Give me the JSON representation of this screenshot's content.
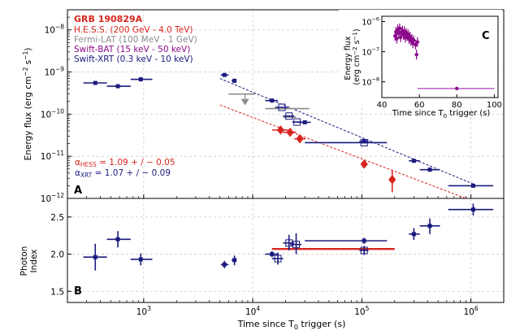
{
  "chart_data": [
    {
      "panel": "A",
      "type": "scatter",
      "x_scale": "log",
      "y_scale": "log",
      "xlim": [
        200,
        2000000
      ],
      "ylim": [
        1e-12,
        3e-08
      ],
      "xlabel": "Time since T0 trigger (s)",
      "ylabel": "Energy flux (erg cm^-2 s^-1)",
      "grid": true,
      "legend_placement": "top-left",
      "legend_title": "GRB 190829A",
      "x_tick_labels": [
        "10^3",
        "10^4",
        "10^5",
        "10^6"
      ],
      "y_tick_labels": [
        "10^-12",
        "10^-11",
        "10^-10",
        "10^-9",
        "10^-8"
      ],
      "annotations": [
        {
          "text": "α_HESS = 1.09 + / − 0.05",
          "color": "#d7261e"
        },
        {
          "text": "α_XRT = 1.07 + / − 0.09",
          "color": "#1a1a7e"
        }
      ],
      "series": [
        {
          "name": "H.E.S.S. (200 GeV - 4.0 TeV)",
          "color": "#d7261e",
          "marker": "diamond",
          "points": [
            {
              "x": 18000,
              "y": 4.2e-11,
              "xerr": [
                15000,
                21000
              ]
            },
            {
              "x": 22000,
              "y": 3.7e-11,
              "xerr": [
                19000,
                25000
              ]
            },
            {
              "x": 27000,
              "y": 2.6e-11,
              "xerr": [
                24000,
                30500
              ]
            },
            {
              "x": 105000,
              "y": 6.5e-12,
              "xerr": [
                100000,
                110000
              ]
            },
            {
              "x": 190000,
              "y": 2.8e-12,
              "xerr": [
                185000,
                195000
              ],
              "yerr": [
                1.4e-12,
                4.8e-12
              ]
            }
          ]
        },
        {
          "name": "Fermi-LAT (100 MeV - 1 GeV)",
          "color": "#8c8c8c",
          "marker": "none",
          "points": [
            {
              "x": 8500,
              "y": 3e-10,
              "xerr": [
                6000,
                10500
              ],
              "upper_limit": true
            },
            {
              "x": 20000,
              "y": 1.35e-10,
              "xerr": [
                13000,
                33000
              ]
            },
            {
              "x": 22000,
              "y": 8.5e-11,
              "xerr": [
                19000,
                25000
              ]
            }
          ]
        },
        {
          "name": "Swift-BAT (15 keV - 50 keV)",
          "color": "#8b0a8b",
          "marker": "circle",
          "points": []
        },
        {
          "name": "Swift-XRT (0.3 keV - 10 keV)",
          "color": "#1a1a7e",
          "marker": "square",
          "points": [
            {
              "x": 360,
              "y": 5.5e-10,
              "xerr": [
                280,
                460
              ]
            },
            {
              "x": 580,
              "y": 4.6e-10,
              "xerr": [
                460,
                760
              ]
            },
            {
              "x": 940,
              "y": 6.7e-10,
              "xerr": [
                760,
                1200
              ]
            },
            {
              "x": 5500,
              "y": 8.5e-10,
              "xerr": [
                5100,
                6000
              ]
            },
            {
              "x": 6800,
              "y": 6.2e-10,
              "xerr": [
                6400,
                7100
              ]
            },
            {
              "x": 15000,
              "y": 2.1e-10,
              "xerr": [
                13000,
                17000
              ]
            },
            {
              "x": 18500,
              "y": 1.45e-10,
              "xerr": [
                16000,
                21000
              ],
              "open": true
            },
            {
              "x": 21500,
              "y": 9e-11,
              "xerr": [
                19000,
                24000
              ],
              "open": true
            },
            {
              "x": 25500,
              "y": 6.5e-11,
              "xerr": [
                23000,
                28000
              ],
              "open": true
            },
            {
              "x": 30000,
              "y": 6.4e-11,
              "xerr": [
                26000,
                34000
              ]
            },
            {
              "x": 105000,
              "y": 2.1e-11,
              "xerr": [
                30000,
                170000
              ],
              "open": true
            },
            {
              "x": 105000,
              "y": 2.25e-11,
              "xerr": [
                95000,
                115000
              ]
            },
            {
              "x": 300000,
              "y": 7.8e-12,
              "xerr": [
                270000,
                340000
              ]
            },
            {
              "x": 420000,
              "y": 4.8e-12,
              "xerr": [
                340000,
                520000
              ]
            },
            {
              "x": 1050000,
              "y": 2e-12,
              "xerr": [
                620000,
                1600000
              ]
            }
          ]
        }
      ],
      "fit_lines": [
        {
          "name": "HESS fit",
          "color": "#d7261e",
          "from": [
            5000,
            1.65e-10
          ],
          "to": [
            900000,
            5e-13
          ]
        },
        {
          "name": "XRT fit",
          "color": "#1a1a7e",
          "from": [
            5000,
            7e-10
          ],
          "to": [
            1050000,
            2.2e-12
          ]
        }
      ]
    },
    {
      "panel": "B",
      "type": "scatter",
      "x_scale": "log",
      "xlim": [
        200,
        2000000
      ],
      "ylim": [
        1.35,
        2.75
      ],
      "xlabel": "Time since T0 trigger (s)",
      "ylabel": "Photon Index",
      "grid": true,
      "y_tick_labels": [
        "1.5",
        "2.0",
        "2.5"
      ],
      "x_tick_labels": [
        "10^3",
        "10^4",
        "10^5",
        "10^6"
      ],
      "series": [
        {
          "name": "H.E.S.S.",
          "color": "#d7261e",
          "points": [
            {
              "x": 60000,
              "y": 2.07,
              "xerr": [
                15000,
                200000
              ]
            }
          ]
        },
        {
          "name": "Swift-XRT",
          "color": "#1a1a7e",
          "points": [
            {
              "x": 360,
              "y": 1.96,
              "xerr": [
                280,
                460
              ],
              "yerr": [
                1.78,
                2.14
              ]
            },
            {
              "x": 580,
              "y": 2.2,
              "xerr": [
                460,
                760
              ],
              "yerr": [
                2.09,
                2.31
              ]
            },
            {
              "x": 940,
              "y": 1.93,
              "xerr": [
                760,
                1200
              ],
              "yerr": [
                1.85,
                2.01
              ]
            },
            {
              "x": 5500,
              "y": 1.86,
              "xerr": [
                5100,
                6000
              ],
              "yerr": [
                1.81,
                1.91
              ]
            },
            {
              "x": 6800,
              "y": 1.92,
              "xerr": [
                6400,
                7100
              ],
              "yerr": [
                1.85,
                1.98
              ]
            },
            {
              "x": 15000,
              "y": 2.0,
              "xerr": [
                13000,
                17000
              ],
              "yerr": [
                1.96,
                2.04
              ]
            },
            {
              "x": 17000,
              "y": 1.94,
              "xerr": [
                15000,
                19000
              ],
              "yerr": [
                1.86,
                2.02
              ],
              "open": true
            },
            {
              "x": 21500,
              "y": 2.15,
              "xerr": [
                19000,
                24000
              ],
              "yerr": [
                2.05,
                2.26
              ],
              "open": true
            },
            {
              "x": 25000,
              "y": 2.13,
              "xerr": [
                22000,
                28000
              ],
              "yerr": [
                2.0,
                2.28
              ],
              "open": true
            },
            {
              "x": 105000,
              "y": 2.18,
              "xerr": [
                30000,
                170000
              ],
              "yerr": [
                2.14,
                2.22
              ]
            },
            {
              "x": 105000,
              "y": 2.05,
              "xerr": [
                95000,
                115000
              ],
              "yerr": [
                1.99,
                2.11
              ],
              "open": true
            },
            {
              "x": 300000,
              "y": 2.27,
              "xerr": [
                270000,
                340000
              ],
              "yerr": [
                2.19,
                2.35
              ]
            },
            {
              "x": 420000,
              "y": 2.38,
              "xerr": [
                340000,
                520000
              ],
              "yerr": [
                2.27,
                2.48
              ]
            },
            {
              "x": 1050000,
              "y": 2.6,
              "xerr": [
                620000,
                1600000
              ],
              "yerr": [
                2.52,
                2.68
              ]
            }
          ]
        }
      ]
    },
    {
      "panel": "C",
      "type": "scatter",
      "y_scale": "log",
      "xlim": [
        40,
        102
      ],
      "ylim": [
        3e-09,
        1.5e-06
      ],
      "xlabel": "Time since T0 trigger (s)",
      "ylabel": "Energy flux (erg cm^-2 s^-1)",
      "x_tick_labels": [
        "40",
        "60",
        "80",
        "100"
      ],
      "y_tick_labels": [
        "10^-8",
        "10^-7",
        "10^-6"
      ],
      "series": [
        {
          "name": "Swift-BAT",
          "color": "#8b0a8b",
          "points": [
            {
              "x": 47,
              "y": 3.3e-07
            },
            {
              "x": 47.5,
              "y": 4.6e-07
            },
            {
              "x": 48,
              "y": 2.7e-07
            },
            {
              "x": 48.5,
              "y": 5.5e-07
            },
            {
              "x": 49,
              "y": 4e-07
            },
            {
              "x": 49.5,
              "y": 6e-07
            },
            {
              "x": 50,
              "y": 3e-07
            },
            {
              "x": 50.5,
              "y": 4.4e-07
            },
            {
              "x": 51,
              "y": 5e-07
            },
            {
              "x": 51.5,
              "y": 3.6e-07
            },
            {
              "x": 52,
              "y": 4.8e-07
            },
            {
              "x": 52.5,
              "y": 2.9e-07
            },
            {
              "x": 53,
              "y": 4.1e-07
            },
            {
              "x": 53.5,
              "y": 3.3e-07
            },
            {
              "x": 54,
              "y": 3.8e-07
            },
            {
              "x": 54.5,
              "y": 2.6e-07
            },
            {
              "x": 55,
              "y": 3.2e-07
            },
            {
              "x": 55.5,
              "y": 2.3e-07
            },
            {
              "x": 56,
              "y": 2.7e-07
            },
            {
              "x": 56.5,
              "y": 1.9e-07
            },
            {
              "x": 57,
              "y": 2.4e-07
            },
            {
              "x": 58,
              "y": 1.7e-07
            },
            {
              "x": 59,
              "y": 2.1e-07
            },
            {
              "x": 58.5,
              "y": 8e-08
            },
            {
              "x": 80,
              "y": 6e-09,
              "xerr": [
                59,
                100
              ]
            }
          ]
        }
      ]
    }
  ]
}
